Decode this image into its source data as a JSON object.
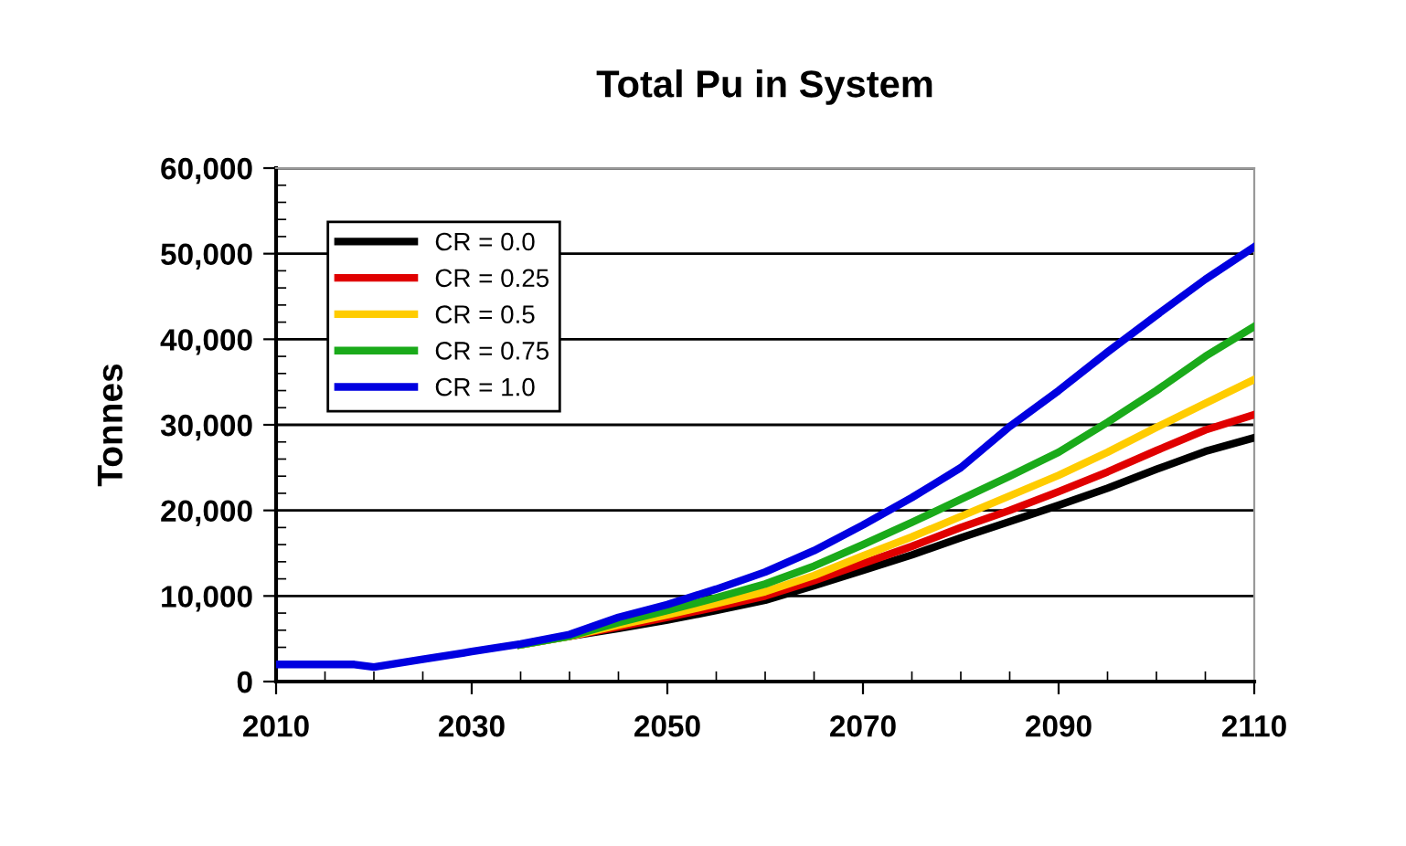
{
  "chart_data": {
    "type": "line",
    "title": "Total Pu in System",
    "ylabel": "Tonnes",
    "x": [
      2010,
      2015,
      2018,
      2020,
      2025,
      2030,
      2035,
      2040,
      2045,
      2050,
      2055,
      2060,
      2065,
      2070,
      2075,
      2080,
      2085,
      2090,
      2095,
      2100,
      2105,
      2110
    ],
    "series": [
      {
        "name": "CR = 0.0",
        "color": "#000000",
        "values": [
          null,
          null,
          null,
          null,
          null,
          null,
          4300,
          5300,
          6200,
          7200,
          8300,
          9500,
          11200,
          13000,
          14800,
          16800,
          18700,
          20600,
          22600,
          24800,
          26900,
          28500
        ]
      },
      {
        "name": "CR = 0.25",
        "color": "#e00000",
        "values": [
          null,
          null,
          null,
          null,
          null,
          null,
          null,
          5300,
          6400,
          7500,
          8700,
          10000,
          11800,
          13800,
          15800,
          18000,
          20000,
          22200,
          24500,
          27000,
          29400,
          31200
        ]
      },
      {
        "name": "CR = 0.5",
        "color": "#ffcc00",
        "values": [
          null,
          null,
          null,
          null,
          null,
          null,
          4300,
          5300,
          6600,
          7800,
          9100,
          10500,
          12400,
          14700,
          16900,
          19300,
          21700,
          24100,
          26800,
          29700,
          32500,
          35300
        ]
      },
      {
        "name": "CR = 0.75",
        "color": "#1aaa1a",
        "values": [
          null,
          null,
          null,
          null,
          null,
          null,
          4300,
          5300,
          6900,
          8300,
          9800,
          11400,
          13500,
          16000,
          18600,
          21300,
          24000,
          26800,
          30300,
          34000,
          38000,
          41500
        ]
      },
      {
        "name": "CR = 1.0",
        "color": "#0000e0",
        "values": [
          2000,
          2000,
          2000,
          1700,
          2600,
          3500,
          4400,
          5500,
          7500,
          9000,
          10800,
          12800,
          15300,
          18300,
          21500,
          25000,
          29800,
          34000,
          38500,
          42800,
          47000,
          50800
        ]
      }
    ],
    "xlim": [
      2010,
      2110
    ],
    "xticks": [
      2010,
      2030,
      2050,
      2070,
      2090,
      2110
    ],
    "ylim": [
      0,
      60000
    ],
    "yticks": [
      {
        "value": 0,
        "label": "0"
      },
      {
        "value": 10000,
        "label": "10,000"
      },
      {
        "value": 20000,
        "label": "20,000"
      },
      {
        "value": 30000,
        "label": "30,000"
      },
      {
        "value": 40000,
        "label": "40,000"
      },
      {
        "value": 50000,
        "label": "50,000"
      },
      {
        "value": 60000,
        "label": "60,000"
      }
    ],
    "grid": "y",
    "legend": "top left",
    "marker": "none",
    "line_style": "solid"
  }
}
